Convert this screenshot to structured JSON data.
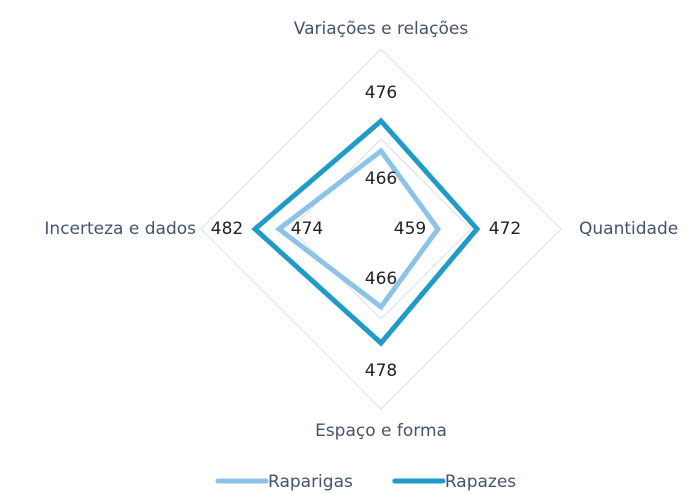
{
  "chart_data": {
    "type": "radar",
    "categories": [
      "Variações e relações",
      "Quantidade",
      "Espaço e forma",
      "Incerteza e dados"
    ],
    "series": [
      {
        "name": "Raparigas",
        "color": "#8dc3e8",
        "values": [
          466,
          459,
          466,
          474
        ]
      },
      {
        "name": "Rapazes",
        "color": "#1f9bc8",
        "values": [
          476,
          472,
          478,
          482
        ]
      }
    ],
    "ylim": [
      440,
      500
    ],
    "yticks": [
      440,
      470,
      500
    ],
    "grid": true,
    "legend": "bottom"
  }
}
